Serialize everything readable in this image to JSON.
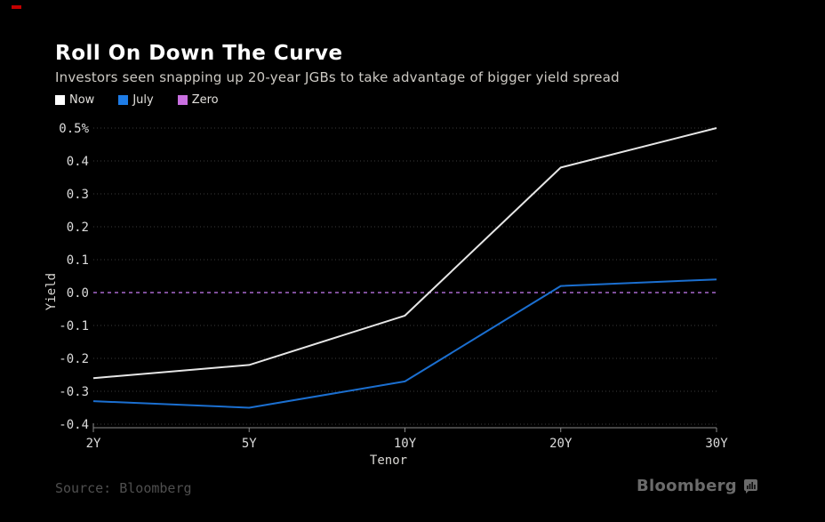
{
  "chart_data": {
    "type": "line",
    "title": "Roll On Down The Curve",
    "subtitle": "Investors seen snapping up 20-year JGBs to take advantage of bigger yield spread",
    "xlabel": "Tenor",
    "ylabel": "Yield",
    "categories": [
      "2Y",
      "5Y",
      "10Y",
      "20Y",
      "30Y"
    ],
    "series": [
      {
        "name": "Now",
        "values": [
          -0.26,
          -0.22,
          -0.07,
          0.38,
          0.5
        ],
        "color": "#e6e6e6",
        "style": "solid"
      },
      {
        "name": "July",
        "values": [
          -0.33,
          -0.35,
          -0.27,
          0.02,
          0.04
        ],
        "color": "#1b6fd0",
        "style": "solid"
      },
      {
        "name": "Zero",
        "values": [
          0,
          0,
          0,
          0,
          0
        ],
        "color": "#7e4e9a",
        "style": "dashed"
      }
    ],
    "ylim": [
      -0.4,
      0.5
    ],
    "yticks": {
      "values": [
        0.5,
        0.4,
        0.3,
        0.2,
        0.1,
        0.0,
        -0.1,
        -0.2,
        -0.3,
        -0.4
      ],
      "labels": [
        "0.5%",
        "0.4",
        "0.3",
        "0.2",
        "0.1",
        "0.0",
        "-0.1",
        "-0.2",
        "-0.3",
        "-0.4"
      ]
    },
    "grid": "horizontal-dotted",
    "legend_position": "top-left"
  },
  "legend": {
    "items": [
      {
        "label": "Now",
        "color": "#ffffff"
      },
      {
        "label": "July",
        "color": "#1e7ce6"
      },
      {
        "label": "Zero",
        "color": "#c96fe0"
      }
    ]
  },
  "footer": {
    "source": "Source: Bloomberg",
    "brand": "Bloomberg"
  },
  "colors": {
    "background": "#000000",
    "axis": "#8a8a8a",
    "grid": "#3d3d3d",
    "tick_text": "#dcdcdc",
    "accent_mark": "#c40000"
  }
}
